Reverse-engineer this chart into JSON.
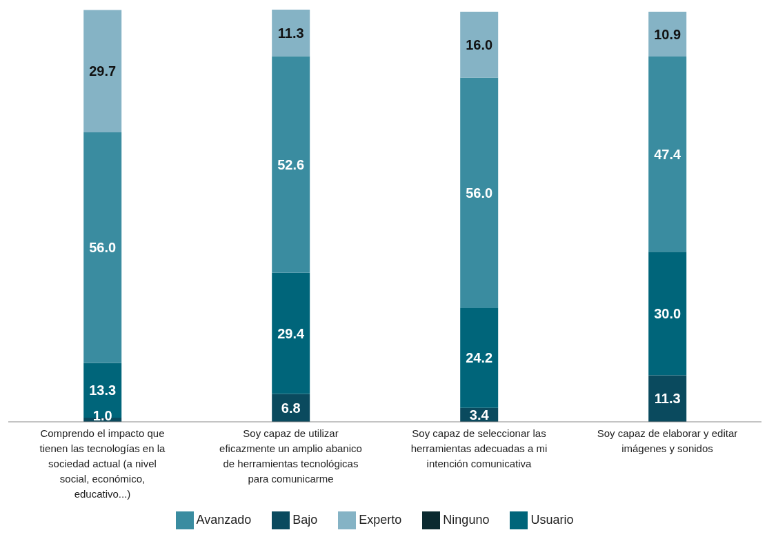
{
  "chart_data": {
    "type": "bar",
    "stacked": true,
    "categories": [
      "Comprendo el impacto que tienen las tecnologías en la sociedad actual (a nivel social, económico, educativo...)",
      "Soy capaz de utilizar eficazmente un amplio abanico de herramientas tecnológicas para comunicarme",
      "Soy capaz de seleccionar las herramientas adecuadas a mi intención comunicativa",
      "Soy capaz de elaborar y editar imágenes y sonidos"
    ],
    "series": [
      {
        "name": "Ninguno",
        "color": "#0b2a30",
        "values": [
          null,
          null,
          null,
          null
        ]
      },
      {
        "name": "Bajo",
        "color": "#0a4a5e",
        "values": [
          1.0,
          6.8,
          3.4,
          11.3
        ],
        "value_labels": [
          "1.0",
          "6.8",
          "3.4",
          "11.3"
        ]
      },
      {
        "name": "Usuario",
        "color": "#00657a",
        "values": [
          13.3,
          29.4,
          24.2,
          30.0
        ],
        "value_labels": [
          "13.3",
          "29.4",
          "24.2",
          "30.0"
        ]
      },
      {
        "name": "Avanzado",
        "color": "#3a8ca0",
        "values": [
          56.0,
          52.6,
          56.0,
          47.4
        ],
        "value_labels": [
          "56.0",
          "52.6",
          "56.0",
          "47.4"
        ]
      },
      {
        "name": "Experto",
        "color": "#85b3c5",
        "values": [
          29.7,
          11.3,
          16.0,
          10.9
        ],
        "value_labels": [
          "29.7",
          "11.3",
          "16.0",
          "10.9"
        ]
      }
    ],
    "legend": "bottom",
    "grid": false
  }
}
